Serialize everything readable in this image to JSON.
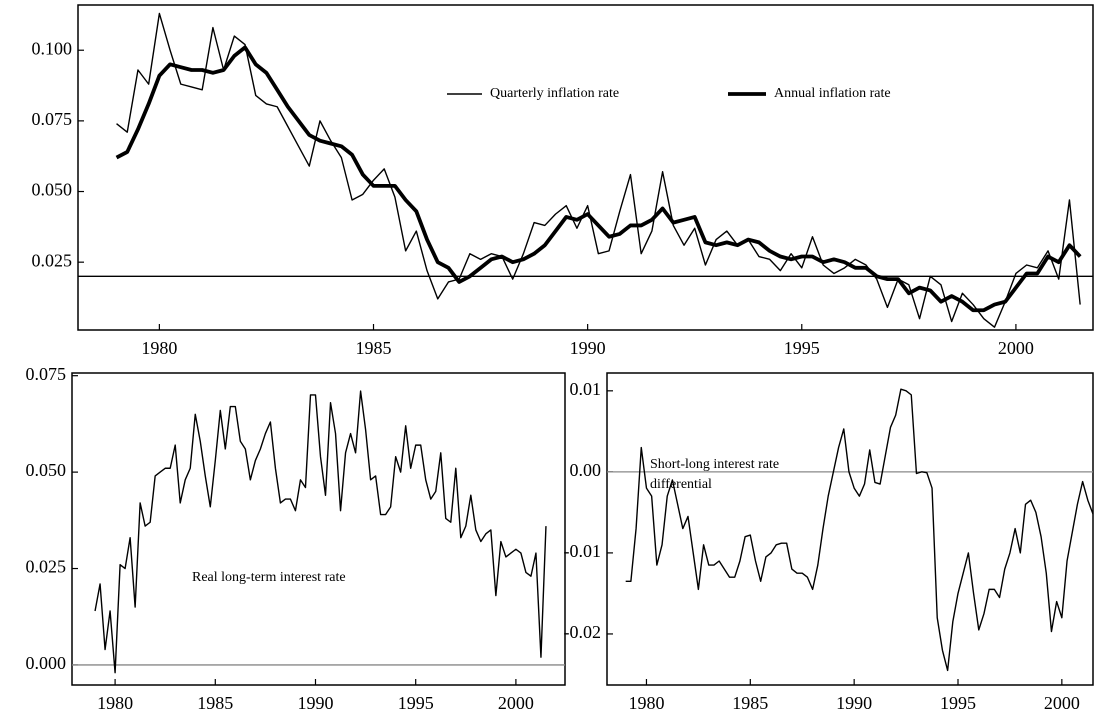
{
  "chart_data": [
    {
      "type": "line",
      "x": [
        1979,
        1979.25,
        1979.5,
        1979.75,
        1980,
        1980.25,
        1980.5,
        1980.75,
        1981,
        1981.25,
        1981.5,
        1981.75,
        1982,
        1982.25,
        1982.5,
        1982.75,
        1983,
        1983.25,
        1983.5,
        1983.75,
        1984,
        1984.25,
        1984.5,
        1984.75,
        1985,
        1985.25,
        1985.5,
        1985.75,
        1986,
        1986.25,
        1986.5,
        1986.75,
        1987,
        1987.25,
        1987.5,
        1987.75,
        1988,
        1988.25,
        1988.5,
        1988.75,
        1989,
        1989.25,
        1989.5,
        1989.75,
        1990,
        1990.25,
        1990.5,
        1990.75,
        1991,
        1991.25,
        1991.5,
        1991.75,
        1992,
        1992.25,
        1992.5,
        1992.75,
        1993,
        1993.25,
        1993.5,
        1993.75,
        1994,
        1994.25,
        1994.5,
        1994.75,
        1995,
        1995.25,
        1995.5,
        1995.75,
        1996,
        1996.25,
        1996.5,
        1996.75,
        1997,
        1997.25,
        1997.5,
        1997.75,
        1998,
        1998.25,
        1998.5,
        1998.75,
        1999,
        1999.25,
        1999.5,
        1999.75,
        2000,
        2000.25,
        2000.5,
        2000.75,
        2001,
        2001.25,
        2001.5
      ],
      "series": [
        {
          "name": "Quarterly inflation rate",
          "color": "#000000",
          "line_width": 1.4,
          "values": [
            0.074,
            0.071,
            0.093,
            0.088,
            0.113,
            0.1,
            0.088,
            0.087,
            0.086,
            0.108,
            0.093,
            0.105,
            0.102,
            0.084,
            0.081,
            0.08,
            0.073,
            0.066,
            0.059,
            0.075,
            0.068,
            0.062,
            0.047,
            0.049,
            0.054,
            0.058,
            0.048,
            0.029,
            0.036,
            0.022,
            0.012,
            0.018,
            0.019,
            0.028,
            0.026,
            0.028,
            0.027,
            0.019,
            0.028,
            0.039,
            0.038,
            0.042,
            0.045,
            0.037,
            0.045,
            0.028,
            0.029,
            0.043,
            0.056,
            0.028,
            0.036,
            0.057,
            0.038,
            0.031,
            0.037,
            0.024,
            0.033,
            0.036,
            0.031,
            0.033,
            0.027,
            0.026,
            0.022,
            0.028,
            0.023,
            0.034,
            0.024,
            0.021,
            0.023,
            0.026,
            0.024,
            0.019,
            0.009,
            0.019,
            0.017,
            0.005,
            0.02,
            0.017,
            0.004,
            0.014,
            0.01,
            0.005,
            0.002,
            0.011,
            0.021,
            0.024,
            0.023,
            0.029,
            0.019,
            0.047,
            0.01
          ]
        },
        {
          "name": "Annual inflation rate",
          "color": "#000000",
          "line_width": 3.8,
          "values": [
            0.062,
            0.064,
            0.072,
            0.081,
            0.091,
            0.095,
            0.094,
            0.093,
            0.093,
            0.092,
            0.093,
            0.098,
            0.101,
            0.095,
            0.092,
            0.086,
            0.08,
            0.075,
            0.07,
            0.068,
            0.067,
            0.066,
            0.063,
            0.056,
            0.052,
            0.052,
            0.052,
            0.047,
            0.043,
            0.033,
            0.025,
            0.023,
            0.018,
            0.02,
            0.023,
            0.026,
            0.027,
            0.025,
            0.026,
            0.028,
            0.031,
            0.036,
            0.041,
            0.04,
            0.042,
            0.038,
            0.034,
            0.035,
            0.038,
            0.038,
            0.04,
            0.044,
            0.039,
            0.04,
            0.041,
            0.032,
            0.031,
            0.032,
            0.031,
            0.033,
            0.032,
            0.029,
            0.027,
            0.026,
            0.027,
            0.027,
            0.025,
            0.026,
            0.025,
            0.023,
            0.023,
            0.02,
            0.019,
            0.019,
            0.014,
            0.016,
            0.015,
            0.011,
            0.013,
            0.011,
            0.008,
            0.008,
            0.01,
            0.011,
            0.016,
            0.021,
            0.021,
            0.027,
            0.025,
            0.031,
            0.027
          ]
        }
      ],
      "xlim": [
        1978.1,
        2001.8
      ],
      "xticks": [
        1980,
        1985,
        1990,
        1995,
        2000
      ],
      "ylim": [
        0.001,
        0.116
      ],
      "yticks": [
        0.025,
        {
          "value": 0.05,
          "label": "0.050"
        },
        0.075,
        {
          "value": 0.1,
          "label": "0.100"
        }
      ],
      "reference_line": 0.02,
      "reference_line_color": "#000000",
      "legend": true
    },
    {
      "type": "line",
      "x": [
        1979,
        1979.25,
        1979.5,
        1979.75,
        1980,
        1980.25,
        1980.5,
        1980.75,
        1981,
        1981.25,
        1981.5,
        1981.75,
        1982,
        1982.25,
        1982.5,
        1982.75,
        1983,
        1983.25,
        1983.5,
        1983.75,
        1984,
        1984.25,
        1984.5,
        1984.75,
        1985,
        1985.25,
        1985.5,
        1985.75,
        1986,
        1986.25,
        1986.5,
        1986.75,
        1987,
        1987.25,
        1987.5,
        1987.75,
        1988,
        1988.25,
        1988.5,
        1988.75,
        1989,
        1989.25,
        1989.5,
        1989.75,
        1990,
        1990.25,
        1990.5,
        1990.75,
        1991,
        1991.25,
        1991.5,
        1991.75,
        1992,
        1992.25,
        1992.5,
        1992.75,
        1993,
        1993.25,
        1993.5,
        1993.75,
        1994,
        1994.25,
        1994.5,
        1994.75,
        1995,
        1995.25,
        1995.5,
        1995.75,
        1996,
        1996.25,
        1996.5,
        1996.75,
        1997,
        1997.25,
        1997.5,
        1997.75,
        1998,
        1998.25,
        1998.5,
        1998.75,
        1999,
        1999.25,
        1999.5,
        1999.75,
        2000,
        2000.25,
        2000.5,
        2000.75,
        2001,
        2001.25,
        2001.5
      ],
      "series": [
        {
          "color": "#000000",
          "line_width": 1.4,
          "values": [
            0.014,
            0.021,
            0.004,
            0.014,
            -0.002,
            0.026,
            0.025,
            0.033,
            0.015,
            0.042,
            0.036,
            0.037,
            0.049,
            0.05,
            0.051,
            0.051,
            0.057,
            0.042,
            0.048,
            0.051,
            0.065,
            0.058,
            0.049,
            0.041,
            0.053,
            0.066,
            0.056,
            0.067,
            0.067,
            0.058,
            0.056,
            0.048,
            0.053,
            0.056,
            0.06,
            0.063,
            0.051,
            0.042,
            0.043,
            0.043,
            0.04,
            0.048,
            0.046,
            0.07,
            0.07,
            0.054,
            0.044,
            0.068,
            0.06,
            0.04,
            0.055,
            0.06,
            0.055,
            0.071,
            0.061,
            0.048,
            0.049,
            0.039,
            0.039,
            0.041,
            0.054,
            0.05,
            0.062,
            0.051,
            0.057,
            0.057,
            0.048,
            0.043,
            0.045,
            0.055,
            0.038,
            0.037,
            0.051,
            0.033,
            0.036,
            0.044,
            0.035,
            0.032,
            0.034,
            0.035,
            0.018,
            0.032,
            0.028,
            0.029,
            0.03,
            0.029,
            0.024,
            0.023,
            0.029,
            0.002,
            0.036
          ]
        }
      ],
      "xlim": [
        1977.85,
        2002.45
      ],
      "xticks": [
        1980,
        1985,
        1990,
        1995,
        2000
      ],
      "ylim": [
        -0.0052,
        0.0757
      ],
      "yticks": [
        {
          "value": 0,
          "label": "0.000"
        },
        0.025,
        {
          "value": 0.05,
          "label": "0.050"
        },
        0.075
      ],
      "reference_line": 0,
      "reference_line_color": "#888888",
      "annotation": [
        "Real long-term interest rate"
      ]
    },
    {
      "type": "line",
      "x": [
        1979,
        1979.25,
        1979.5,
        1979.75,
        1980,
        1980.25,
        1980.5,
        1980.75,
        1981,
        1981.25,
        1981.5,
        1981.75,
        1982,
        1982.25,
        1982.5,
        1982.75,
        1983,
        1983.25,
        1983.5,
        1983.75,
        1984,
        1984.25,
        1984.5,
        1984.75,
        1985,
        1985.25,
        1985.5,
        1985.75,
        1986,
        1986.25,
        1986.5,
        1986.75,
        1987,
        1987.25,
        1987.5,
        1987.75,
        1988,
        1988.25,
        1988.5,
        1988.75,
        1989,
        1989.25,
        1989.5,
        1989.75,
        1990,
        1990.25,
        1990.5,
        1990.75,
        1991,
        1991.25,
        1991.5,
        1991.75,
        1992,
        1992.25,
        1992.5,
        1992.75,
        1993,
        1993.25,
        1993.5,
        1993.75,
        1994,
        1994.25,
        1994.5,
        1994.75,
        1995,
        1995.25,
        1995.5,
        1995.75,
        1996,
        1996.25,
        1996.5,
        1996.75,
        1997,
        1997.25,
        1997.5,
        1997.75,
        1998,
        1998.25,
        1998.5,
        1998.75,
        1999,
        1999.25,
        1999.5,
        1999.75,
        2000,
        2000.25,
        2000.5,
        2000.75,
        2001,
        2001.25,
        2001.5
      ],
      "series": [
        {
          "color": "#000000",
          "line_width": 1.4,
          "values": [
            -0.0135,
            -0.0135,
            -0.007,
            0.003,
            -0.002,
            -0.003,
            -0.0115,
            -0.009,
            -0.003,
            -0.001,
            -0.004,
            -0.007,
            -0.0055,
            -0.01,
            -0.0145,
            -0.009,
            -0.0115,
            -0.0115,
            -0.011,
            -0.012,
            -0.013,
            -0.013,
            -0.011,
            -0.008,
            -0.0078,
            -0.011,
            -0.0135,
            -0.0105,
            -0.01,
            -0.009,
            -0.0088,
            -0.0088,
            -0.012,
            -0.0125,
            -0.0125,
            -0.013,
            -0.0145,
            -0.0115,
            -0.007,
            -0.003,
            0,
            0.003,
            0.0053,
            0,
            -0.002,
            -0.003,
            -0.0015,
            0.0027,
            -0.0013,
            -0.0015,
            0.002,
            0.0055,
            0.007,
            0.0102,
            0.01,
            0.0095,
            -0.0002,
            0,
            -0.0001,
            -0.002,
            -0.018,
            -0.022,
            -0.0245,
            -0.0185,
            -0.015,
            -0.0125,
            -0.01,
            -0.015,
            -0.0195,
            -0.0175,
            -0.0145,
            -0.0145,
            -0.0155,
            -0.012,
            -0.01,
            -0.007,
            -0.01,
            -0.004,
            -0.0035,
            -0.005,
            -0.008,
            -0.0125,
            -0.0197,
            -0.016,
            -0.018,
            -0.011,
            -0.0075,
            -0.004,
            -0.0012,
            -0.0035,
            -0.0052
          ]
        }
      ],
      "xlim": [
        1978.1,
        2001.5
      ],
      "xticks": [
        1980,
        1985,
        1990,
        1995,
        2000
      ],
      "ylim": [
        -0.0263,
        0.0122
      ],
      "yticks": [
        -0.02,
        -0.01,
        {
          "value": 0,
          "label": "0.00"
        },
        0.01
      ],
      "reference_line": 0,
      "reference_line_color": "#888888",
      "annotation": [
        "Short-long interest rate",
        "differential"
      ]
    }
  ]
}
